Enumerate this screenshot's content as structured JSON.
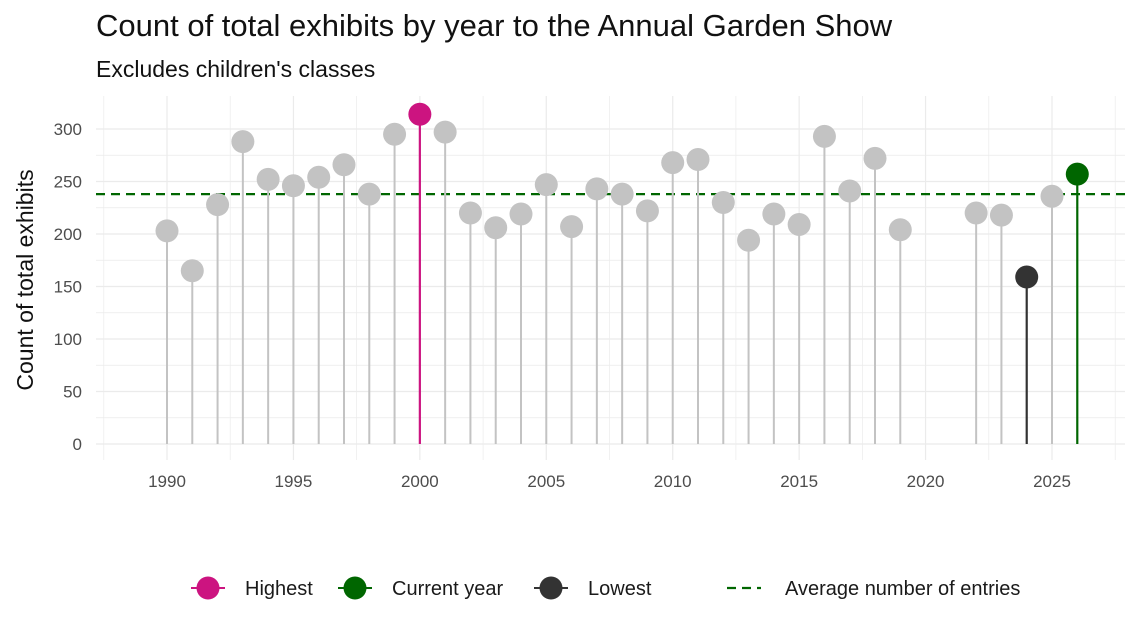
{
  "title": "Count of total exhibits by year to the Annual Garden Show",
  "subtitle": "Excludes children's classes",
  "colors": {
    "regular": "#c3c3c3",
    "highest": "#cc1480",
    "current": "#006600",
    "lowest": "#333333",
    "average": "#006600",
    "grid": "#ebebeb"
  },
  "legend": [
    {
      "label": "Highest",
      "key": "highest",
      "style": "point"
    },
    {
      "label": "Current year",
      "key": "current",
      "style": "point"
    },
    {
      "label": "Lowest",
      "key": "lowest",
      "style": "point"
    },
    {
      "label": "Average number of entries",
      "key": "average",
      "style": "dashed"
    }
  ],
  "chart_data": {
    "type": "lollipop",
    "ylabel": "Count of total exhibits",
    "xlabel": "",
    "xlim": [
      1987.5,
      2028.5
    ],
    "ylim": [
      0,
      315
    ],
    "x_ticks": [
      1990,
      1995,
      2000,
      2005,
      2010,
      2015,
      2020,
      2025
    ],
    "y_ticks": [
      0,
      50,
      100,
      150,
      200,
      250,
      300
    ],
    "grid": true,
    "legend_position": "bottom",
    "average": 238,
    "points": [
      {
        "x": 1990,
        "y": 203,
        "group": "regular"
      },
      {
        "x": 1991,
        "y": 165,
        "group": "regular"
      },
      {
        "x": 1992,
        "y": 228,
        "group": "regular"
      },
      {
        "x": 1993,
        "y": 288,
        "group": "regular"
      },
      {
        "x": 1994,
        "y": 252,
        "group": "regular"
      },
      {
        "x": 1995,
        "y": 246,
        "group": "regular"
      },
      {
        "x": 1996,
        "y": 254,
        "group": "regular"
      },
      {
        "x": 1997,
        "y": 266,
        "group": "regular"
      },
      {
        "x": 1998,
        "y": 238,
        "group": "regular"
      },
      {
        "x": 1999,
        "y": 295,
        "group": "regular"
      },
      {
        "x": 2000,
        "y": 314,
        "group": "highest"
      },
      {
        "x": 2001,
        "y": 297,
        "group": "regular"
      },
      {
        "x": 2002,
        "y": 220,
        "group": "regular"
      },
      {
        "x": 2003,
        "y": 206,
        "group": "regular"
      },
      {
        "x": 2004,
        "y": 219,
        "group": "regular"
      },
      {
        "x": 2005,
        "y": 247,
        "group": "regular"
      },
      {
        "x": 2006,
        "y": 207,
        "group": "regular"
      },
      {
        "x": 2007,
        "y": 243,
        "group": "regular"
      },
      {
        "x": 2008,
        "y": 238,
        "group": "regular"
      },
      {
        "x": 2009,
        "y": 222,
        "group": "regular"
      },
      {
        "x": 2010,
        "y": 268,
        "group": "regular"
      },
      {
        "x": 2011,
        "y": 271,
        "group": "regular"
      },
      {
        "x": 2012,
        "y": 230,
        "group": "regular"
      },
      {
        "x": 2013,
        "y": 194,
        "group": "regular"
      },
      {
        "x": 2014,
        "y": 219,
        "group": "regular"
      },
      {
        "x": 2015,
        "y": 209,
        "group": "regular"
      },
      {
        "x": 2016,
        "y": 293,
        "group": "regular"
      },
      {
        "x": 2017,
        "y": 241,
        "group": "regular"
      },
      {
        "x": 2018,
        "y": 272,
        "group": "regular"
      },
      {
        "x": 2019,
        "y": 204,
        "group": "regular"
      },
      {
        "x": 2022,
        "y": 220,
        "group": "regular"
      },
      {
        "x": 2023,
        "y": 218,
        "group": "regular"
      },
      {
        "x": 2024,
        "y": 159,
        "group": "lowest"
      },
      {
        "x": 2025,
        "y": 236,
        "group": "regular"
      },
      {
        "x": 2026,
        "y": 257,
        "group": "current"
      }
    ]
  }
}
